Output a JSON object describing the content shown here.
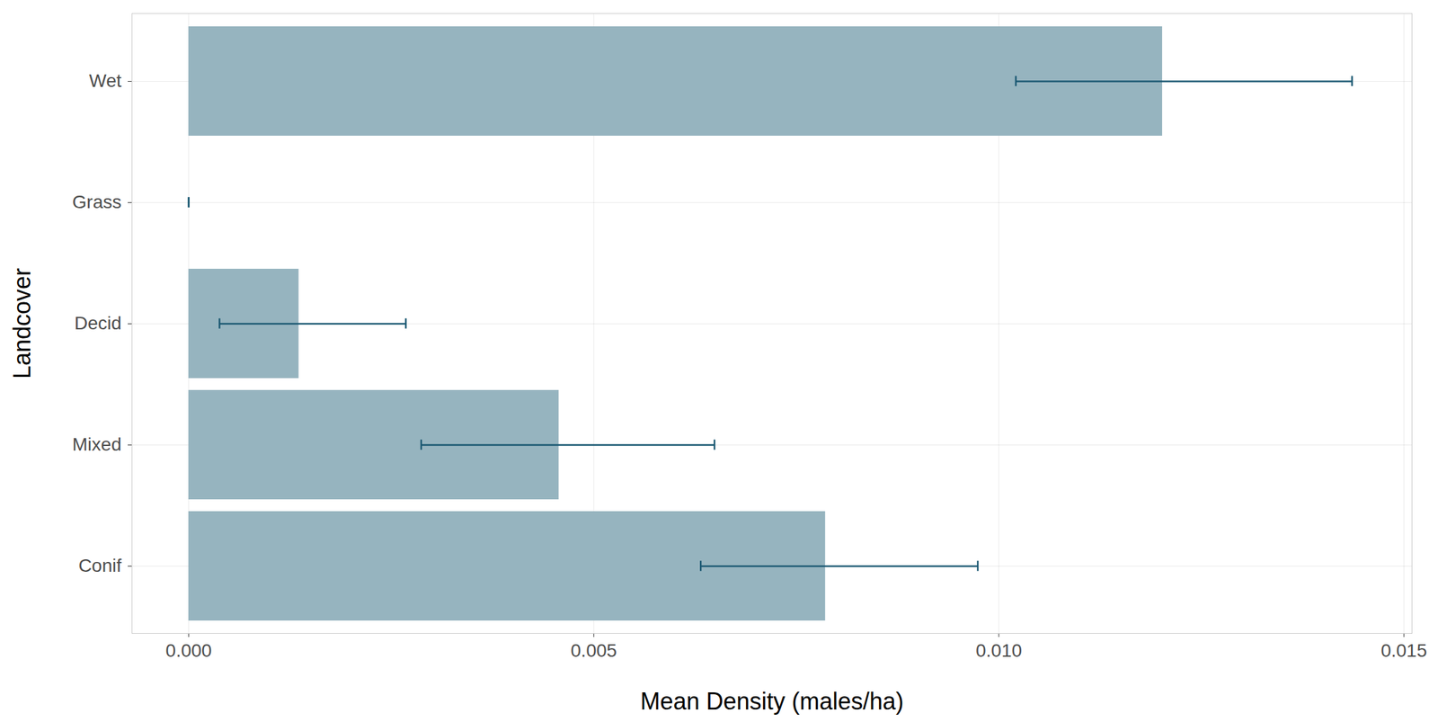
{
  "chart_data": {
    "type": "bar",
    "orientation": "horizontal",
    "x_label": "Mean Density (males/ha)",
    "y_label": "Landcover",
    "categories": [
      "Wet",
      "Grass",
      "Decid",
      "Mixed",
      "Conif"
    ],
    "values": [
      0.01202,
      0,
      0.00136,
      0.00457,
      0.00786
    ],
    "error_low": [
      0.01021,
      0,
      0.00038,
      0.00287,
      0.00632
    ],
    "error_high": [
      0.01436,
      0,
      0.00268,
      0.00649,
      0.00974
    ],
    "color": "#96b4bf",
    "error_color": "#1a5872",
    "xlim": [
      -0.0007,
      0.0151
    ],
    "xticks": [
      {
        "value": 0,
        "label": "0.000"
      },
      {
        "value": 0.005,
        "label": "0.005"
      },
      {
        "value": 0.01,
        "label": "0.010"
      },
      {
        "value": 0.015,
        "label": "0.015"
      }
    ],
    "grid": true
  }
}
